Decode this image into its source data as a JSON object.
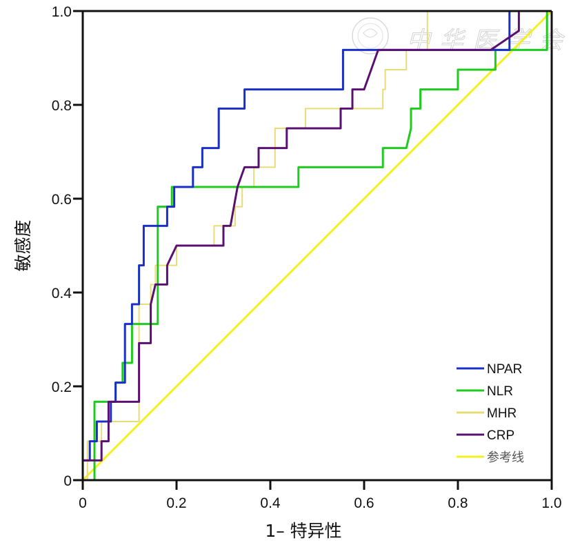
{
  "chart_data": {
    "type": "line",
    "title": "",
    "xlabel": "1– 特异性",
    "ylabel": "敏感度",
    "xlim": [
      0,
      1.0
    ],
    "ylim": [
      0,
      1.0
    ],
    "x_ticks": [
      "0",
      "0.2",
      "0.4",
      "0.6",
      "0.8",
      "1.0"
    ],
    "y_ticks": [
      "0",
      "0.2",
      "0.4",
      "0.6",
      "0.8",
      "1.0"
    ],
    "x_tick_values": [
      0,
      0.2,
      0.4,
      0.6,
      0.8,
      1.0
    ],
    "y_tick_values": [
      0,
      0.2,
      0.4,
      0.6,
      0.8,
      1.0
    ],
    "grid": false,
    "legend_position": "bottom-right",
    "watermark": "中华医学会",
    "series": [
      {
        "name": "NPAR",
        "color": "#1a2fc8",
        "points": [
          [
            0,
            0
          ],
          [
            0,
            0.042
          ],
          [
            0.015,
            0.042
          ],
          [
            0.015,
            0.083
          ],
          [
            0.03,
            0.083
          ],
          [
            0.03,
            0.125
          ],
          [
            0.06,
            0.125
          ],
          [
            0.06,
            0.167
          ],
          [
            0.07,
            0.167
          ],
          [
            0.07,
            0.208
          ],
          [
            0.09,
            0.208
          ],
          [
            0.09,
            0.333
          ],
          [
            0.105,
            0.333
          ],
          [
            0.105,
            0.375
          ],
          [
            0.12,
            0.375
          ],
          [
            0.12,
            0.458
          ],
          [
            0.13,
            0.458
          ],
          [
            0.13,
            0.542
          ],
          [
            0.18,
            0.542
          ],
          [
            0.18,
            0.583
          ],
          [
            0.195,
            0.583
          ],
          [
            0.195,
            0.625
          ],
          [
            0.235,
            0.625
          ],
          [
            0.235,
            0.667
          ],
          [
            0.255,
            0.667
          ],
          [
            0.255,
            0.708
          ],
          [
            0.29,
            0.708
          ],
          [
            0.29,
            0.792
          ],
          [
            0.345,
            0.792
          ],
          [
            0.345,
            0.833
          ],
          [
            0.555,
            0.833
          ],
          [
            0.555,
            0.917
          ],
          [
            0.91,
            0.917
          ],
          [
            0.91,
            1.0
          ],
          [
            1.0,
            1.0
          ]
        ]
      },
      {
        "name": "NLR",
        "color": "#1ecb1e",
        "points": [
          [
            0.025,
            0
          ],
          [
            0.025,
            0.167
          ],
          [
            0.07,
            0.167
          ],
          [
            0.07,
            0.208
          ],
          [
            0.085,
            0.208
          ],
          [
            0.085,
            0.25
          ],
          [
            0.105,
            0.25
          ],
          [
            0.105,
            0.333
          ],
          [
            0.16,
            0.333
          ],
          [
            0.16,
            0.583
          ],
          [
            0.19,
            0.583
          ],
          [
            0.19,
            0.625
          ],
          [
            0.46,
            0.625
          ],
          [
            0.46,
            0.667
          ],
          [
            0.64,
            0.667
          ],
          [
            0.64,
            0.708
          ],
          [
            0.69,
            0.708
          ],
          [
            0.7,
            0.75
          ],
          [
            0.7,
            0.792
          ],
          [
            0.72,
            0.792
          ],
          [
            0.72,
            0.833
          ],
          [
            0.8,
            0.833
          ],
          [
            0.8,
            0.875
          ],
          [
            0.88,
            0.875
          ],
          [
            0.88,
            0.917
          ],
          [
            0.99,
            0.917
          ],
          [
            0.99,
            1.0
          ]
        ]
      },
      {
        "name": "MHR",
        "color": "#e8dc74",
        "points": [
          [
            0,
            0
          ],
          [
            0.01,
            0
          ],
          [
            0.01,
            0.083
          ],
          [
            0.04,
            0.083
          ],
          [
            0.04,
            0.125
          ],
          [
            0.12,
            0.125
          ],
          [
            0.12,
            0.375
          ],
          [
            0.145,
            0.375
          ],
          [
            0.145,
            0.417
          ],
          [
            0.155,
            0.417
          ],
          [
            0.155,
            0.458
          ],
          [
            0.2,
            0.458
          ],
          [
            0.2,
            0.5
          ],
          [
            0.28,
            0.5
          ],
          [
            0.28,
            0.542
          ],
          [
            0.325,
            0.542
          ],
          [
            0.325,
            0.583
          ],
          [
            0.34,
            0.583
          ],
          [
            0.34,
            0.625
          ],
          [
            0.365,
            0.625
          ],
          [
            0.365,
            0.667
          ],
          [
            0.41,
            0.667
          ],
          [
            0.41,
            0.75
          ],
          [
            0.475,
            0.75
          ],
          [
            0.475,
            0.792
          ],
          [
            0.64,
            0.792
          ],
          [
            0.64,
            0.833
          ],
          [
            0.645,
            0.833
          ],
          [
            0.645,
            0.875
          ],
          [
            0.69,
            0.875
          ],
          [
            0.69,
            0.917
          ],
          [
            0.735,
            0.917
          ],
          [
            0.735,
            1.0
          ],
          [
            1.0,
            1.0
          ]
        ]
      },
      {
        "name": "CRP",
        "color": "#5a1070",
        "points": [
          [
            0,
            0
          ],
          [
            0,
            0.042
          ],
          [
            0.04,
            0.042
          ],
          [
            0.04,
            0.083
          ],
          [
            0.055,
            0.083
          ],
          [
            0.055,
            0.167
          ],
          [
            0.12,
            0.167
          ],
          [
            0.12,
            0.292
          ],
          [
            0.145,
            0.292
          ],
          [
            0.145,
            0.375
          ],
          [
            0.155,
            0.417
          ],
          [
            0.18,
            0.417
          ],
          [
            0.18,
            0.458
          ],
          [
            0.2,
            0.5
          ],
          [
            0.3,
            0.5
          ],
          [
            0.3,
            0.542
          ],
          [
            0.315,
            0.542
          ],
          [
            0.33,
            0.625
          ],
          [
            0.345,
            0.667
          ],
          [
            0.375,
            0.667
          ],
          [
            0.375,
            0.708
          ],
          [
            0.435,
            0.708
          ],
          [
            0.435,
            0.75
          ],
          [
            0.55,
            0.75
          ],
          [
            0.55,
            0.792
          ],
          [
            0.575,
            0.792
          ],
          [
            0.575,
            0.833
          ],
          [
            0.6,
            0.833
          ],
          [
            0.615,
            0.875
          ],
          [
            0.63,
            0.917
          ],
          [
            0.87,
            0.917
          ],
          [
            0.93,
            0.958
          ],
          [
            0.93,
            1.0
          ],
          [
            1.0,
            1.0
          ]
        ]
      },
      {
        "name": "参考线",
        "color": "#f5f020",
        "points": [
          [
            0,
            0
          ],
          [
            1.0,
            1.0
          ]
        ]
      }
    ]
  }
}
